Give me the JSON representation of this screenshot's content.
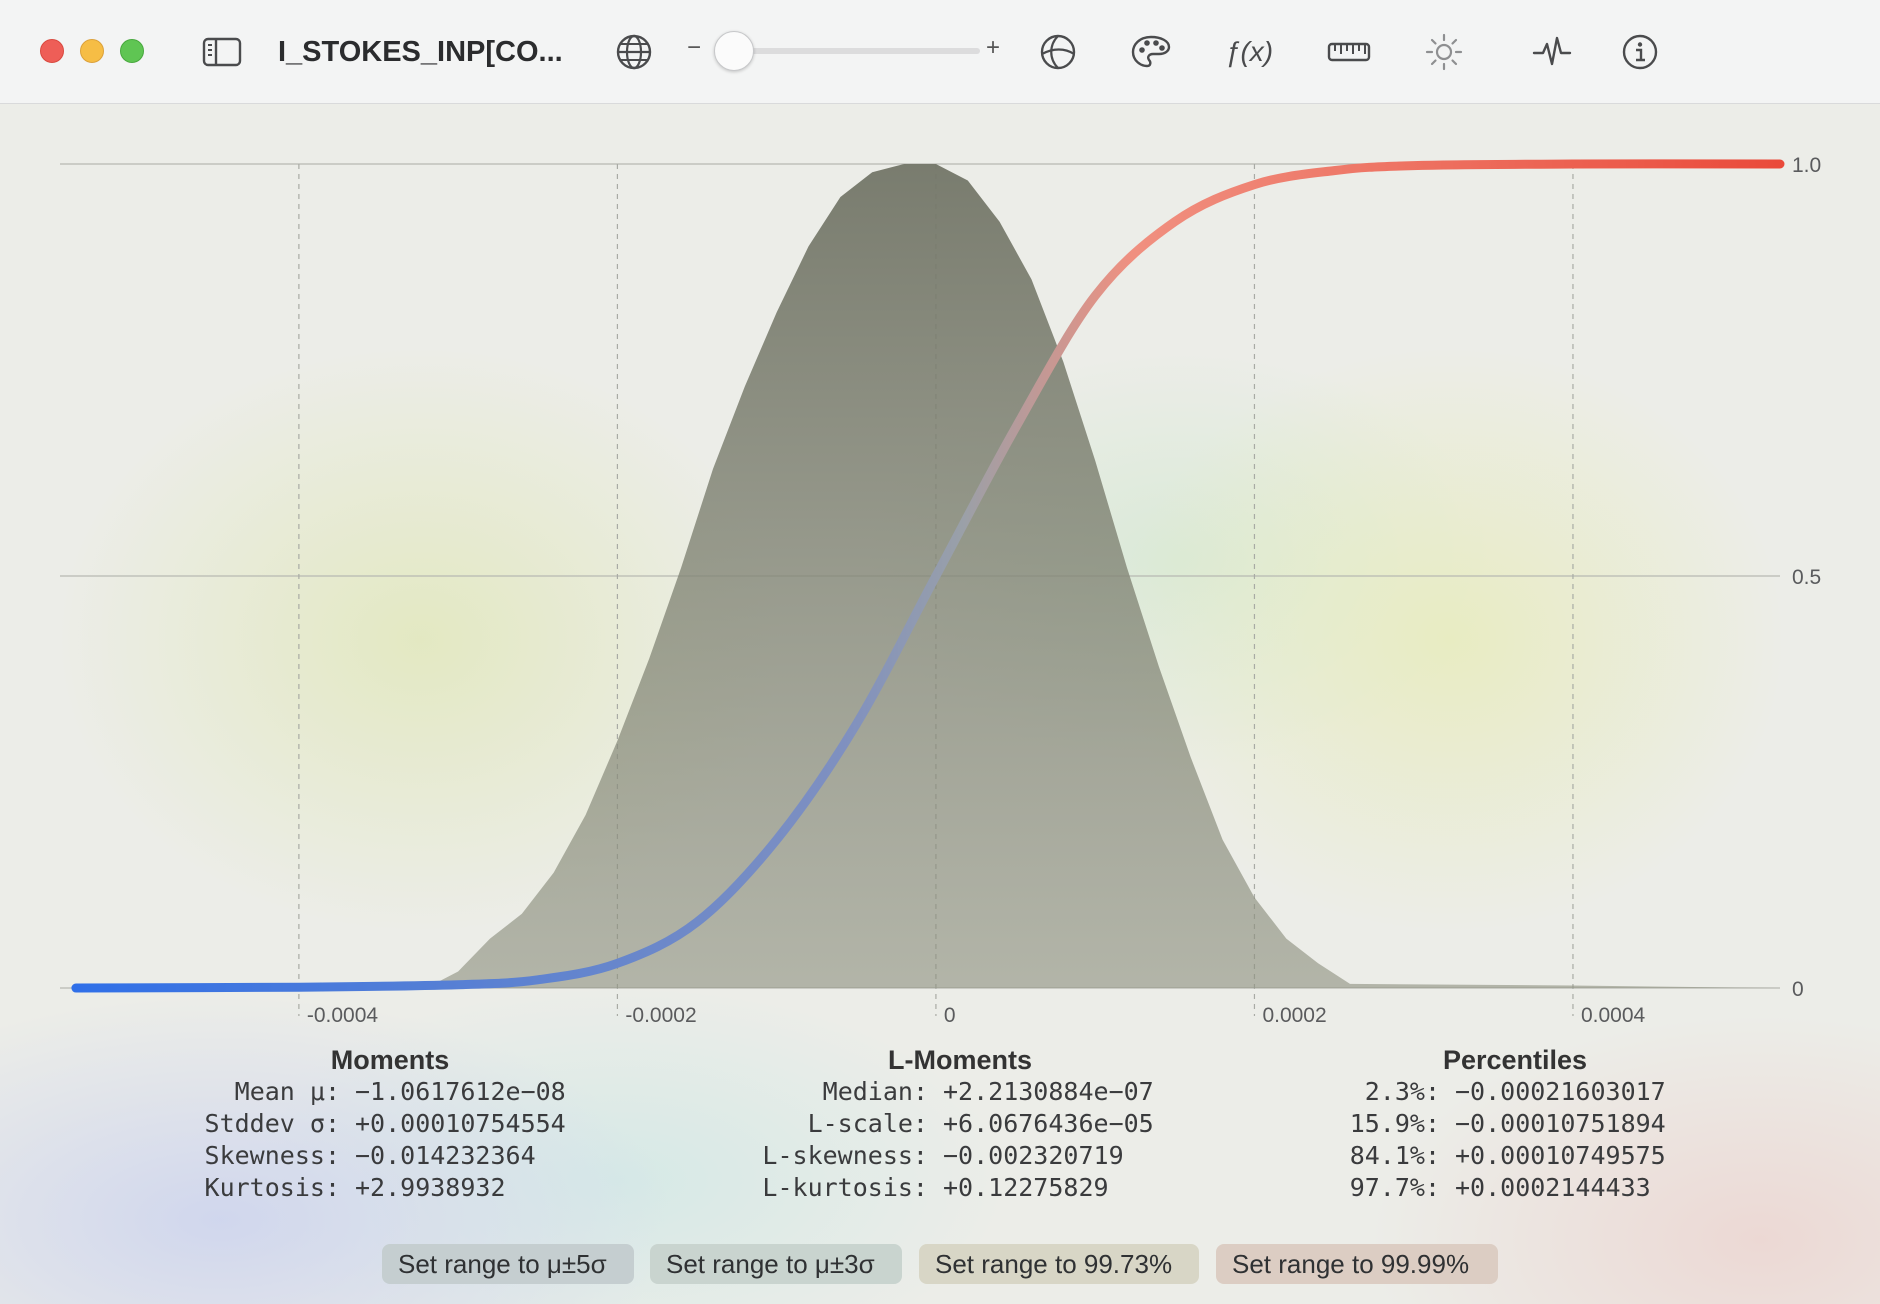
{
  "window": {
    "title": "I_STOKES_INP[CO...",
    "slider": {
      "minus": "−",
      "plus": "+",
      "value": 0.0
    },
    "toolbar_icons": [
      "sidebar-icon",
      "globe-icon",
      "projection-icon",
      "palette-icon",
      "function-icon",
      "ruler-icon",
      "brightness-icon",
      "waveform-icon",
      "info-icon"
    ],
    "function_label": "ƒ(x)"
  },
  "chart_data": {
    "type": "area",
    "title": "",
    "xlabel": "",
    "ylabel": "",
    "xlim": [
      -0.00055,
      0.00053
    ],
    "ylim": [
      0,
      1.0
    ],
    "x_ticks": [
      {
        "value": -0.0004,
        "label": "-0.0004"
      },
      {
        "value": -0.0002,
        "label": "-0.0002"
      },
      {
        "value": 0,
        "label": "0"
      },
      {
        "value": 0.0002,
        "label": "0.0002"
      },
      {
        "value": 0.0004,
        "label": "0.0004"
      }
    ],
    "y_ticks": [
      {
        "value": 0,
        "label": "0"
      },
      {
        "value": 0.5,
        "label": "0.5"
      },
      {
        "value": 1.0,
        "label": "1.0"
      }
    ],
    "grid": true,
    "series": [
      {
        "type": "area",
        "color": "#7d8070",
        "x": [
          -0.00055,
          -0.00032,
          -0.0003,
          -0.00028,
          -0.00026,
          -0.00024,
          -0.00022,
          -0.0002,
          -0.00018,
          -0.00016,
          -0.00014,
          -0.00012,
          -0.0001,
          -8e-05,
          -6e-05,
          -4e-05,
          -2e-05,
          0,
          2e-05,
          4e-05,
          6e-05,
          8e-05,
          0.0001,
          0.00012,
          0.00014,
          0.00016,
          0.00018,
          0.0002,
          0.00022,
          0.00024,
          0.00026,
          0.0004,
          0.00053
        ],
        "y": [
          0,
          0.0,
          0.02,
          0.06,
          0.09,
          0.14,
          0.21,
          0.3,
          0.4,
          0.51,
          0.63,
          0.73,
          0.82,
          0.9,
          0.96,
          0.99,
          1.0,
          1.0,
          0.98,
          0.93,
          0.86,
          0.76,
          0.64,
          0.51,
          0.39,
          0.28,
          0.18,
          0.11,
          0.06,
          0.03,
          0.005,
          0.003,
          0.0
        ]
      },
      {
        "type": "line",
        "color_start": "#2f6fe8",
        "color_mid": "#9aa0a8",
        "color_end": "#ea4a3a",
        "x": [
          -0.00054,
          -0.0004,
          -0.0003,
          -0.00025,
          -0.0002,
          -0.00015,
          -0.0001,
          -5e-05,
          0,
          5e-05,
          0.0001,
          0.00015,
          0.0002,
          0.00025,
          0.0003,
          0.0004,
          0.00053
        ],
        "y": [
          0.0,
          0.001,
          0.004,
          0.01,
          0.03,
          0.08,
          0.18,
          0.32,
          0.5,
          0.68,
          0.84,
          0.93,
          0.975,
          0.992,
          0.998,
          1.0,
          1.0
        ]
      }
    ]
  },
  "stats": {
    "moments": {
      "heading": "Moments",
      "rows": [
        {
          "label": "Mean μ:",
          "value": "−1.0617612e−08"
        },
        {
          "label": "Stddev σ:",
          "value": "+0.00010754554"
        },
        {
          "label": "Skewness:",
          "value": "−0.014232364"
        },
        {
          "label": "Kurtosis:",
          "value": "+2.9938932"
        }
      ]
    },
    "l_moments": {
      "heading": "L-Moments",
      "rows": [
        {
          "label": "Median:",
          "value": "+2.2130884e−07"
        },
        {
          "label": "L-scale:",
          "value": "+6.0676436e−05"
        },
        {
          "label": "L-skewness:",
          "value": "−0.002320719"
        },
        {
          "label": "L-kurtosis:",
          "value": "+0.12275829"
        }
      ]
    },
    "percentiles": {
      "heading": "Percentiles",
      "rows": [
        {
          "label": "2.3%:",
          "value": "−0.00021603017"
        },
        {
          "label": "15.9%:",
          "value": "−0.00010751894"
        },
        {
          "label": "84.1%:",
          "value": "+0.00010749575"
        },
        {
          "label": "97.7%:",
          "value": "+0.0002144433"
        }
      ]
    }
  },
  "buttons": [
    {
      "label": "Set range to μ±5σ",
      "color": "#c5ced0"
    },
    {
      "label": "Set range to μ±3σ",
      "color": "#c9d4cf"
    },
    {
      "label": "Set range to 99.73%",
      "color": "#d8d6c6"
    },
    {
      "label": "Set range to 99.99%",
      "color": "#dccdc3"
    }
  ]
}
